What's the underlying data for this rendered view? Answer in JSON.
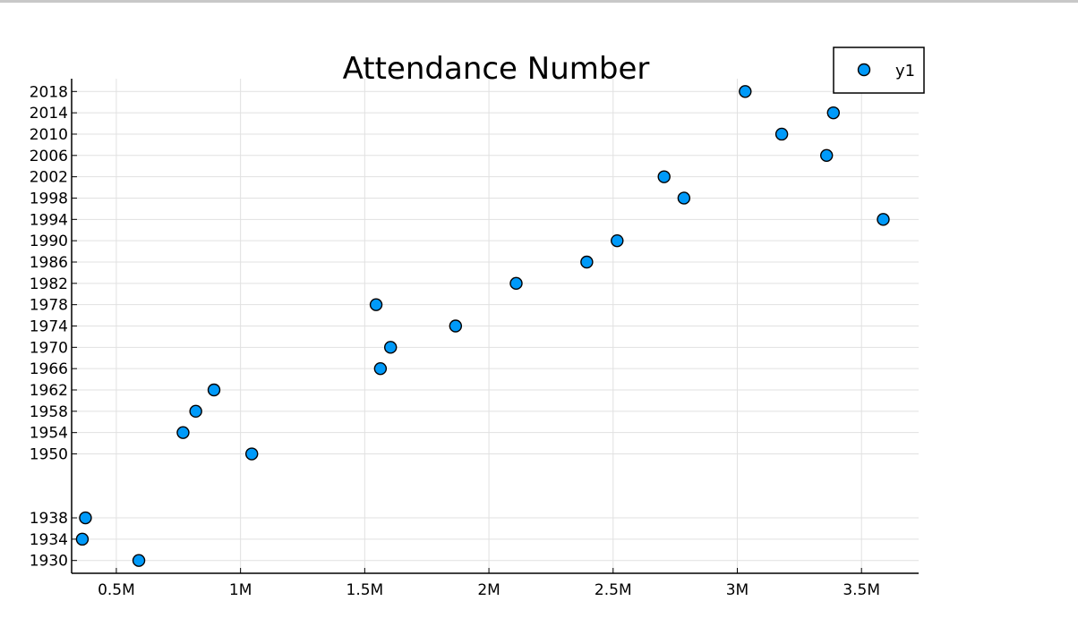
{
  "chart_data": {
    "type": "scatter",
    "title": "Attendance Number",
    "xlabel": "",
    "ylabel": "",
    "xlim": [
      320000,
      3730000
    ],
    "ylim": [
      1927.6,
      2020.4
    ],
    "grid": true,
    "legend_position": "top-right",
    "x_ticks": [
      {
        "value": 500000,
        "label": "0.5M"
      },
      {
        "value": 1000000,
        "label": "1M"
      },
      {
        "value": 1500000,
        "label": "1.5M"
      },
      {
        "value": 2000000,
        "label": "2M"
      },
      {
        "value": 2500000,
        "label": "2.5M"
      },
      {
        "value": 3000000,
        "label": "3M"
      },
      {
        "value": 3500000,
        "label": "3.5M"
      }
    ],
    "y_ticks": [
      1930,
      1934,
      1938,
      1950,
      1954,
      1958,
      1962,
      1966,
      1970,
      1974,
      1978,
      1982,
      1986,
      1990,
      1994,
      1998,
      2002,
      2006,
      2010,
      2014,
      2018
    ],
    "series": [
      {
        "name": "y1",
        "color": "#009af9",
        "points": [
          {
            "x": 590549,
            "y": 1930
          },
          {
            "x": 363000,
            "y": 1934
          },
          {
            "x": 375700,
            "y": 1938
          },
          {
            "x": 1045246,
            "y": 1950
          },
          {
            "x": 768607,
            "y": 1954
          },
          {
            "x": 819810,
            "y": 1958
          },
          {
            "x": 893172,
            "y": 1962
          },
          {
            "x": 1563135,
            "y": 1966
          },
          {
            "x": 1603975,
            "y": 1970
          },
          {
            "x": 1865753,
            "y": 1974
          },
          {
            "x": 1545791,
            "y": 1978
          },
          {
            "x": 2109723,
            "y": 1982
          },
          {
            "x": 2394031,
            "y": 1986
          },
          {
            "x": 2516215,
            "y": 1990
          },
          {
            "x": 3587538,
            "y": 1994
          },
          {
            "x": 2785100,
            "y": 1998
          },
          {
            "x": 2705197,
            "y": 2002
          },
          {
            "x": 3359439,
            "y": 2006
          },
          {
            "x": 3178856,
            "y": 2010
          },
          {
            "x": 3386810,
            "y": 2014
          },
          {
            "x": 3031768,
            "y": 2018
          }
        ]
      }
    ]
  }
}
